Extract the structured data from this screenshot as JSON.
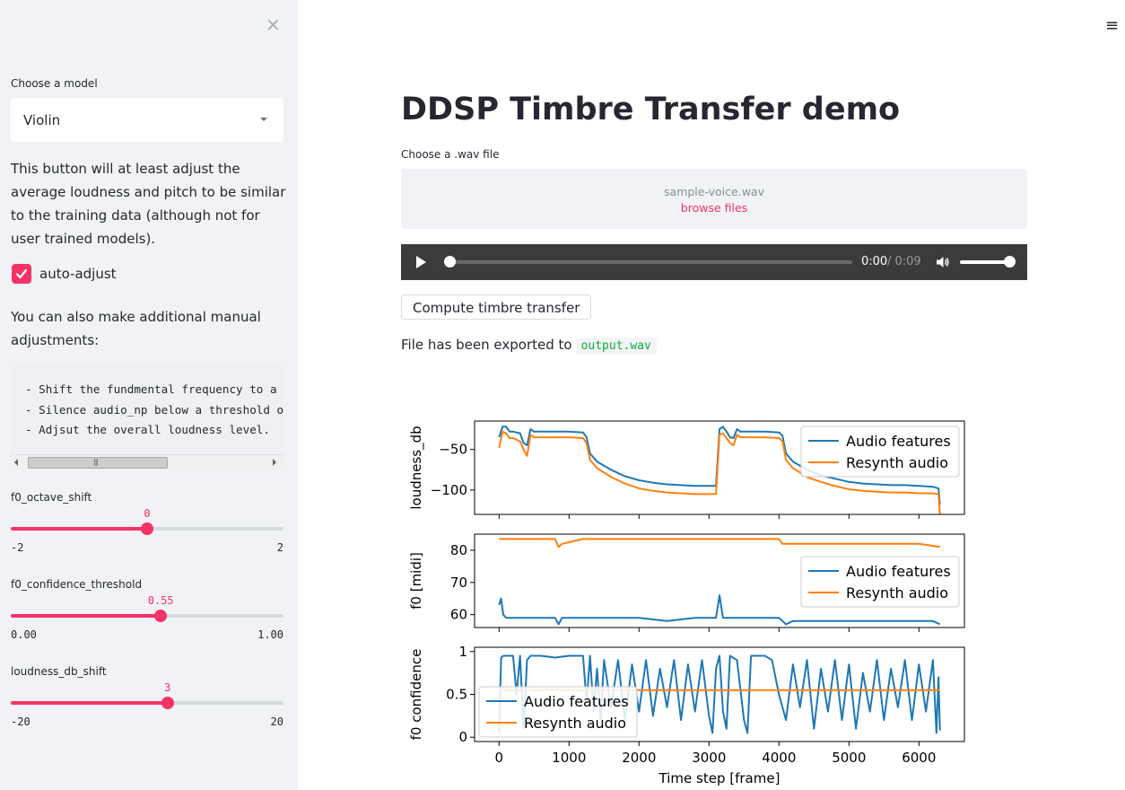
{
  "sidebar": {
    "close_symbol": "×",
    "model_label": "Choose a model",
    "model_value": "Violin",
    "description": "This button will at least adjust the average loudness and pitch to be similar to the training data (although not for user trained models).",
    "auto_adjust_label": "auto-adjust",
    "auto_adjust_checked": true,
    "manual_text": "You can also make additional manual adjustments:",
    "code_lines": [
      "- Shift the fundmental frequency to a",
      "- Silence audio_np below a threshold o",
      "- Adjsut the overall loudness level."
    ],
    "sliders": [
      {
        "label": "f0_octave_shift",
        "value": 0,
        "value_text": "0",
        "min": -2,
        "max": 2,
        "min_text": "-2",
        "max_text": "2"
      },
      {
        "label": "f0_confidence_threshold",
        "value": 0.55,
        "value_text": "0.55",
        "min": 0,
        "max": 1,
        "min_text": "0.00",
        "max_text": "1.00"
      },
      {
        "label": "loudness_db_shift",
        "value": 3,
        "value_text": "3",
        "min": -20,
        "max": 20,
        "min_text": "-20",
        "max_text": "20"
      }
    ]
  },
  "header": {
    "menu_icon": "hamburger-menu-icon",
    "menu_symbol": "≡"
  },
  "main": {
    "title": "DDSP Timbre Transfer demo",
    "file_label": "Choose a .wav file",
    "uploaded_file": "sample-voice.wav",
    "browse_label": "browse files",
    "audio": {
      "current": "0:00",
      "duration": "/ 0:09",
      "progress": 0,
      "volume": 1.0
    },
    "compute_button": "Compute timbre transfer",
    "export_text": "File has been exported to",
    "export_file": "output.wav"
  },
  "colors": {
    "accent": "#f63366",
    "series_audio": "#1f77b4",
    "series_resynth": "#ff7f0e"
  },
  "chart_data": [
    {
      "type": "line",
      "ylabel": "loudness_db",
      "yticks": [
        -50,
        -100
      ],
      "ylim": [
        -130,
        -15
      ],
      "xlim": [
        -350,
        6650
      ],
      "legend": "top-right",
      "series": [
        {
          "name": "Audio features",
          "x": [
            0,
            50,
            100,
            150,
            200,
            300,
            350,
            400,
            450,
            500,
            600,
            800,
            1000,
            1200,
            1250,
            1300,
            1400,
            1600,
            1800,
            2000,
            2200,
            2400,
            2600,
            2800,
            3000,
            3100,
            3150,
            3200,
            3250,
            3300,
            3350,
            3400,
            3450,
            3500,
            3600,
            3800,
            4000,
            4050,
            4100,
            4200,
            4400,
            4600,
            4800,
            5000,
            5200,
            5400,
            5600,
            5800,
            6000,
            6200,
            6280,
            6300
          ],
          "y": [
            -35,
            -22,
            -22,
            -28,
            -28,
            -30,
            -42,
            -45,
            -25,
            -28,
            -28,
            -28,
            -28,
            -29,
            -35,
            -55,
            -65,
            -75,
            -83,
            -88,
            -91,
            -93,
            -94,
            -95,
            -95,
            -95,
            -25,
            -22,
            -28,
            -35,
            -36,
            -25,
            -28,
            -28,
            -28,
            -28,
            -29,
            -33,
            -55,
            -65,
            -75,
            -82,
            -86,
            -90,
            -92,
            -93,
            -94,
            -94,
            -95,
            -96,
            -98,
            -118
          ]
        },
        {
          "name": "Resynth audio",
          "x": [
            0,
            50,
            100,
            150,
            200,
            300,
            350,
            400,
            450,
            500,
            600,
            800,
            1000,
            1200,
            1250,
            1300,
            1400,
            1600,
            1800,
            2000,
            2200,
            2400,
            2600,
            2800,
            3000,
            3100,
            3150,
            3200,
            3250,
            3300,
            3350,
            3400,
            3450,
            3500,
            3600,
            3800,
            4000,
            4050,
            4100,
            4200,
            4400,
            4600,
            4800,
            5000,
            5200,
            5400,
            5600,
            5800,
            6000,
            6200,
            6280,
            6300
          ],
          "y": [
            -48,
            -28,
            -30,
            -36,
            -36,
            -40,
            -50,
            -58,
            -32,
            -35,
            -35,
            -35,
            -35,
            -36,
            -42,
            -63,
            -73,
            -84,
            -92,
            -98,
            -101,
            -103,
            -104,
            -105,
            -105,
            -105,
            -32,
            -30,
            -36,
            -42,
            -45,
            -32,
            -35,
            -35,
            -35,
            -35,
            -36,
            -40,
            -63,
            -73,
            -84,
            -90,
            -95,
            -99,
            -101,
            -102,
            -103,
            -103,
            -104,
            -104,
            -105,
            -130
          ]
        }
      ]
    },
    {
      "type": "line",
      "ylabel": "f0 [midi]",
      "yticks": [
        80,
        70,
        60
      ],
      "ylim": [
        56,
        85
      ],
      "xlim": [
        -350,
        6650
      ],
      "legend": "right",
      "series": [
        {
          "name": "Audio features",
          "x": [
            0,
            30,
            60,
            100,
            400,
            700,
            800,
            850,
            900,
            1200,
            1600,
            2000,
            2400,
            2800,
            3000,
            3100,
            3150,
            3200,
            3300,
            3600,
            4000,
            4100,
            4200,
            4600,
            5000,
            5400,
            5800,
            6200,
            6300
          ],
          "y": [
            63,
            65,
            60,
            59,
            59,
            59,
            59,
            57,
            59,
            59,
            59,
            59,
            58,
            59,
            59,
            59,
            66,
            59,
            59,
            59,
            59,
            57,
            58,
            58,
            58,
            58,
            58,
            58,
            57
          ]
        },
        {
          "name": "Resynth audio",
          "x": [
            0,
            400,
            800,
            850,
            900,
            1200,
            2000,
            2800,
            3600,
            4000,
            4050,
            4100,
            4400,
            4800,
            5200,
            5600,
            6000,
            6300
          ],
          "y": [
            83.5,
            83.5,
            83.5,
            81,
            82,
            83.5,
            83.5,
            83.5,
            83.5,
            83.5,
            82,
            82,
            82,
            82,
            82,
            82,
            82,
            81
          ]
        }
      ]
    },
    {
      "type": "line",
      "ylabel": "f0 confidence",
      "yticks": [
        1.0,
        0.5,
        0.0
      ],
      "ylim": [
        -0.05,
        1.05
      ],
      "xlim": [
        -350,
        6650
      ],
      "xticks": [
        0,
        1000,
        2000,
        3000,
        4000,
        5000,
        6000
      ],
      "xlabel": "Time step [frame]",
      "legend": "bottom-left",
      "series": [
        {
          "name": "Audio features",
          "x": [
            0,
            30,
            60,
            200,
            250,
            300,
            350,
            400,
            450,
            600,
            800,
            1000,
            1200,
            1250,
            1300,
            1350,
            1400,
            1450,
            1500,
            1600,
            1700,
            1800,
            1900,
            2000,
            2100,
            2200,
            2300,
            2400,
            2500,
            2600,
            2700,
            2800,
            2900,
            3000,
            3050,
            3100,
            3150,
            3200,
            3250,
            3300,
            3400,
            3500,
            3550,
            3600,
            3700,
            3800,
            3900,
            4000,
            4100,
            4200,
            4300,
            4400,
            4500,
            4600,
            4700,
            4800,
            4900,
            5000,
            5100,
            5200,
            5300,
            5400,
            5500,
            5600,
            5700,
            5800,
            5900,
            6000,
            6100,
            6200,
            6250,
            6280,
            6300
          ],
          "y": [
            0.05,
            0.93,
            0.95,
            0.95,
            0.5,
            0.95,
            0.1,
            0.9,
            0.95,
            0.95,
            0.93,
            0.95,
            0.95,
            0.4,
            0.95,
            0.3,
            0.8,
            0.2,
            0.9,
            0.35,
            0.9,
            0.2,
            0.85,
            0.3,
            0.9,
            0.25,
            0.8,
            0.35,
            0.9,
            0.2,
            0.85,
            0.3,
            0.9,
            0.25,
            0.05,
            0.8,
            0.95,
            0.3,
            0.1,
            0.95,
            0.9,
            0.2,
            0.05,
            0.95,
            0.95,
            0.95,
            0.9,
            0.5,
            0.2,
            0.85,
            0.35,
            0.9,
            0.1,
            0.8,
            0.3,
            0.9,
            0.2,
            0.85,
            0.1,
            0.75,
            0.3,
            0.9,
            0.2,
            0.8,
            0.35,
            0.9,
            0.2,
            0.85,
            0.3,
            0.9,
            0.05,
            0.7,
            0.08
          ]
        },
        {
          "name": "Resynth audio",
          "x": [
            0,
            6300
          ],
          "y": [
            0.55,
            0.55
          ]
        }
      ]
    }
  ]
}
